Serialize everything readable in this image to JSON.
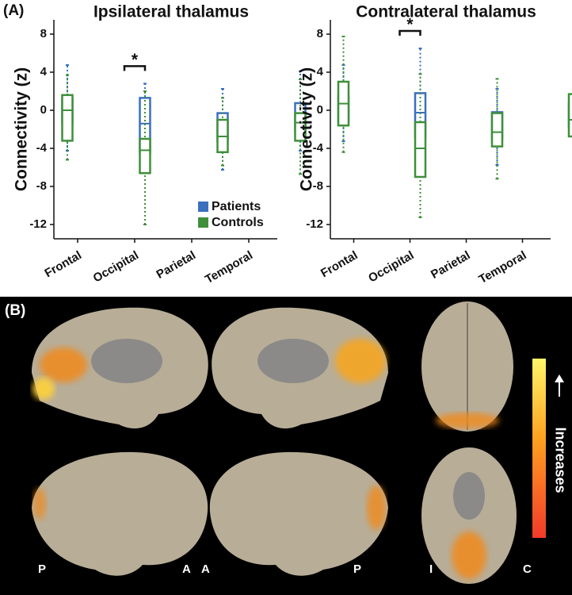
{
  "panel_a_label": "(A)",
  "chart_data": [
    {
      "type": "box",
      "title": "Ipsilateral thalamus",
      "y_label": "Connectivity (z)",
      "categories": [
        "Frontal",
        "Occipital",
        "Parietal",
        "Temporal"
      ],
      "series": [
        {
          "name": "Patients",
          "color": "#3a6fbf",
          "whisker_low": [
            -4.25,
            -6.5,
            -6.25,
            -4.25
          ],
          "q1": [
            -1.3,
            -4.4,
            -3.25,
            -2.25
          ],
          "median": [
            -0.1,
            -1.4,
            -1.7,
            -0.9
          ],
          "q3": [
            1.2,
            1.3,
            -0.3,
            0.75
          ],
          "whisker_high": [
            4.75,
            2.8,
            2.25,
            4.1
          ]
        },
        {
          "name": "Controls",
          "color": "#3f8f3a",
          "whisker_low": [
            -5.2,
            -12,
            -5.8,
            -6.7
          ],
          "q1": [
            -3.2,
            -6.6,
            -4.4,
            -3.2
          ],
          "median": [
            0,
            -4.2,
            -2.75,
            -1.3
          ],
          "q3": [
            1.6,
            -3.0,
            -1.0,
            -0.3
          ],
          "whisker_high": [
            3.7,
            2.0,
            1.3,
            3.25
          ]
        }
      ],
      "ylim": [
        -13.5,
        9.5
      ],
      "yticks": [
        8,
        4,
        0,
        -4,
        -8,
        -12
      ],
      "significance": [
        {
          "label": "*",
          "category": "Occipital"
        }
      ],
      "legend": "bottom-right"
    },
    {
      "type": "box",
      "title": "Contralateral thalamus",
      "y_label": "Connectivity (z)",
      "categories": [
        "Frontal",
        "Occipital",
        "Parietal",
        "Temporal"
      ],
      "series": [
        {
          "color": "#3a6fbf",
          "whisker_low": [
            -3.25,
            -5.8,
            -5.75,
            -3.3
          ],
          "q1": [
            -1.2,
            -2.8,
            -3.0,
            -1.8
          ],
          "median": [
            0,
            -0.25,
            -1.5,
            -0.9
          ],
          "q3": [
            1.5,
            1.8,
            -0.2,
            0.75
          ],
          "whisker_high": [
            4.75,
            6.5,
            2.25,
            3.3
          ]
        },
        {
          "color": "#3f8f3a",
          "whisker_low": [
            -4.4,
            -11.25,
            -7.2,
            -5.9
          ],
          "q1": [
            -1.6,
            -7.0,
            -3.8,
            -2.75
          ],
          "median": [
            0.7,
            -4.0,
            -2.3,
            -1.0
          ],
          "q3": [
            3.0,
            -1.25,
            -0.3,
            1.7
          ],
          "whisker_high": [
            7.75,
            3.8,
            3.3,
            5.2
          ]
        }
      ],
      "ylim": [
        -13.5,
        9.5
      ],
      "yticks": [
        8,
        4,
        0,
        -4,
        -8,
        -12
      ],
      "significance": [
        {
          "label": "*",
          "category": "Occipital"
        }
      ]
    }
  ],
  "panel_b": {
    "label": "(B)",
    "view_labels": [
      "P",
      "A",
      "A",
      "P",
      "I",
      "C"
    ],
    "colorbar_label": "Increases"
  }
}
